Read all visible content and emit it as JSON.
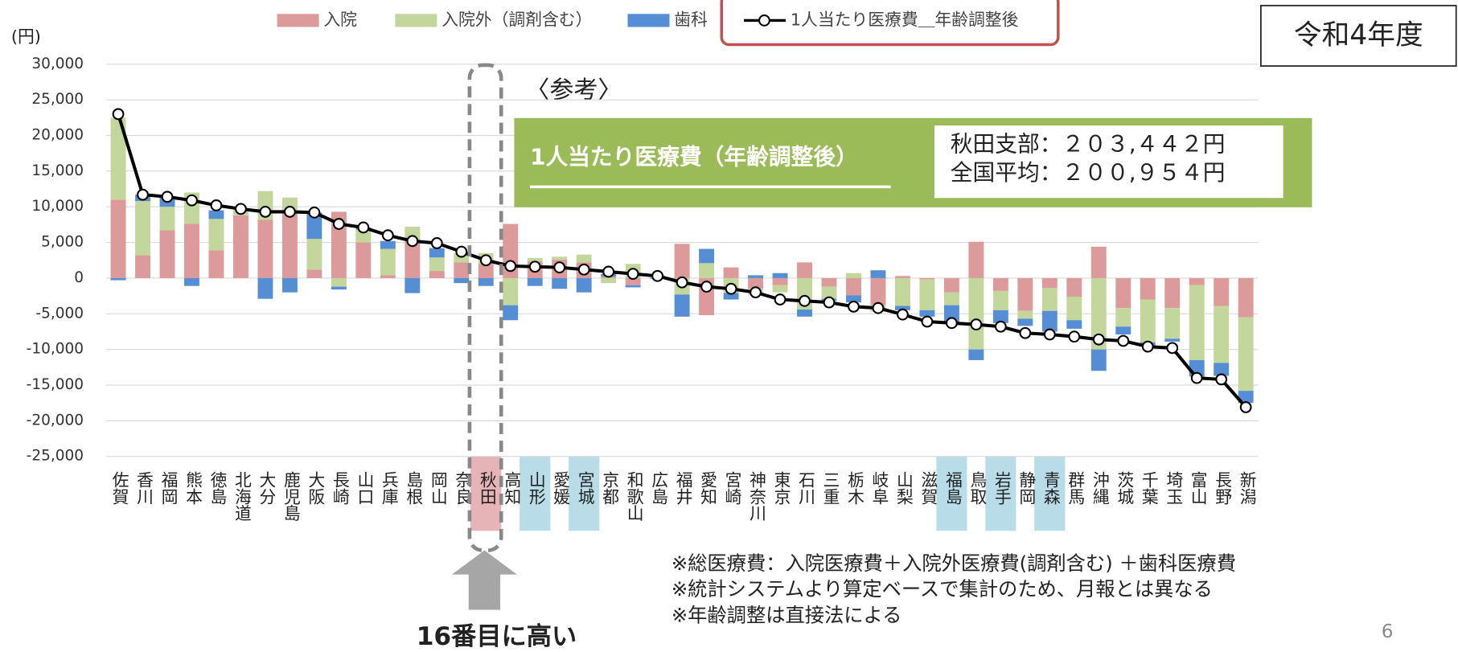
{
  "chart_data": {
    "type": "bar",
    "unit_label": "(円)",
    "badge": "令和4年度",
    "ref_title": "〈参考〉",
    "box_title": "1人当たり医療費（年齢調整後）",
    "box_lines": [
      "秋田支部：２０３,４４２円",
      "全国平均：２００,９５４円"
    ],
    "notes": [
      "※総医療費：入院医療費＋入院外医療費(調剤含む) ＋歯科医療費",
      "※統計システムより算定ベースで集計のため、月報とは異なる",
      "※年齢調整は直接法による"
    ],
    "callout": "16番目に高い",
    "page_number": "6",
    "stacked": true,
    "grid": true,
    "categories": [
      "佐賀",
      "香川",
      "福岡",
      "熊本",
      "徳島",
      "北海道",
      "大分",
      "鹿児島",
      "大阪",
      "長崎",
      "山口",
      "兵庫",
      "島根",
      "岡山",
      "奈良",
      "秋田",
      "高知",
      "山形",
      "愛媛",
      "宮城",
      "京都",
      "和歌山",
      "広島",
      "福井",
      "愛知",
      "宮崎",
      "神奈川",
      "東京",
      "石川",
      "三重",
      "栃木",
      "岐阜",
      "山梨",
      "滋賀",
      "福島",
      "鳥取",
      "岩手",
      "静岡",
      "青森",
      "群馬",
      "沖縄",
      "茨城",
      "千葉",
      "埼玉",
      "富山",
      "長野",
      "新潟"
    ],
    "highlights": {
      "秋田": "#e6b3b6",
      "山形": "#b8dce8",
      "宮城": "#b8dce8",
      "福島": "#b8dce8",
      "岩手": "#b8dce8",
      "青森": "#b8dce8"
    },
    "series": [
      {
        "name": "入院",
        "color": "#dd9a9a",
        "values": [
          11000,
          3200,
          6700,
          7600,
          3900,
          8800,
          8200,
          9200,
          1200,
          9300,
          5000,
          400,
          5200,
          1000,
          2200,
          2000,
          7600,
          2300,
          2600,
          2200,
          200,
          -1000,
          100,
          4800,
          -5200,
          1500,
          -1500,
          -1000,
          2200,
          -1200,
          -2400,
          -3800,
          300,
          -200,
          -2000,
          5100,
          -1800,
          -4600,
          -1400,
          -2600,
          4400,
          -4200,
          -3000,
          -4200,
          -1000,
          -3900,
          -5500
        ]
      },
      {
        "name": "入院外（調剤含む）",
        "color": "#c3d69b",
        "values": [
          11500,
          7600,
          3300,
          4400,
          4400,
          800,
          4000,
          2100,
          4300,
          -1200,
          1800,
          3700,
          2000,
          1900,
          1300,
          1500,
          -3800,
          500,
          400,
          1100,
          -700,
          2000,
          300,
          -2300,
          2100,
          -2100,
          -800,
          -1000,
          -4400,
          -1700,
          700,
          -900,
          -3900,
          -4300,
          -1800,
          -10000,
          -2700,
          -1100,
          -3200,
          -3300,
          -10000,
          -2600,
          -6000,
          -4300,
          -10500,
          -8000,
          -10300
        ]
      },
      {
        "name": "歯科",
        "color": "#558ed5",
        "values": [
          -300,
          900,
          1400,
          -1100,
          1200,
          100,
          -2900,
          -2000,
          3700,
          -400,
          300,
          1100,
          -2100,
          1300,
          -700,
          -1100,
          -2100,
          -1100,
          -1500,
          -2000,
          400,
          -300,
          -100,
          -3100,
          2000,
          -900,
          400,
          700,
          -1000,
          -300,
          -1000,
          1100,
          -600,
          -900,
          -2400,
          -1500,
          -1800,
          -1000,
          -2900,
          -1200,
          -3000,
          -1100,
          -500,
          -400,
          -2300,
          -1800,
          -1700
        ]
      },
      {
        "name": "1人当たり医療費＿年齢調整後",
        "type": "line",
        "color": "#000000",
        "values": [
          23000,
          11700,
          11400,
          10900,
          10200,
          9700,
          9300,
          9300,
          9200,
          7600,
          7100,
          6000,
          5200,
          4900,
          3700,
          2500,
          1700,
          1600,
          1500,
          1200,
          900,
          600,
          300,
          -600,
          -1200,
          -1500,
          -2000,
          -3000,
          -3200,
          -3400,
          -4000,
          -4200,
          -5100,
          -6100,
          -6300,
          -6500,
          -6800,
          -7700,
          -7900,
          -8200,
          -8600,
          -8800,
          -9600,
          -9800,
          -14000,
          -14200,
          -18100
        ]
      }
    ],
    "ylim": [
      -25000,
      30000
    ],
    "yticks": [
      {
        "value": -25000,
        "label": "-25,000"
      },
      {
        "value": -20000,
        "label": "-20,000"
      },
      {
        "value": -15000,
        "label": "-15,000"
      },
      {
        "value": -10000,
        "label": "-10,000"
      },
      {
        "value": -5000,
        "label": "-5,000"
      },
      0,
      {
        "value": 5000,
        "label": "5,000"
      },
      {
        "value": 10000,
        "label": "10,000"
      },
      {
        "value": 15000,
        "label": "15,000"
      },
      {
        "value": 20000,
        "label": "20,000"
      },
      {
        "value": 25000,
        "label": "25,000"
      },
      {
        "value": 30000,
        "label": "30,000"
      }
    ]
  }
}
